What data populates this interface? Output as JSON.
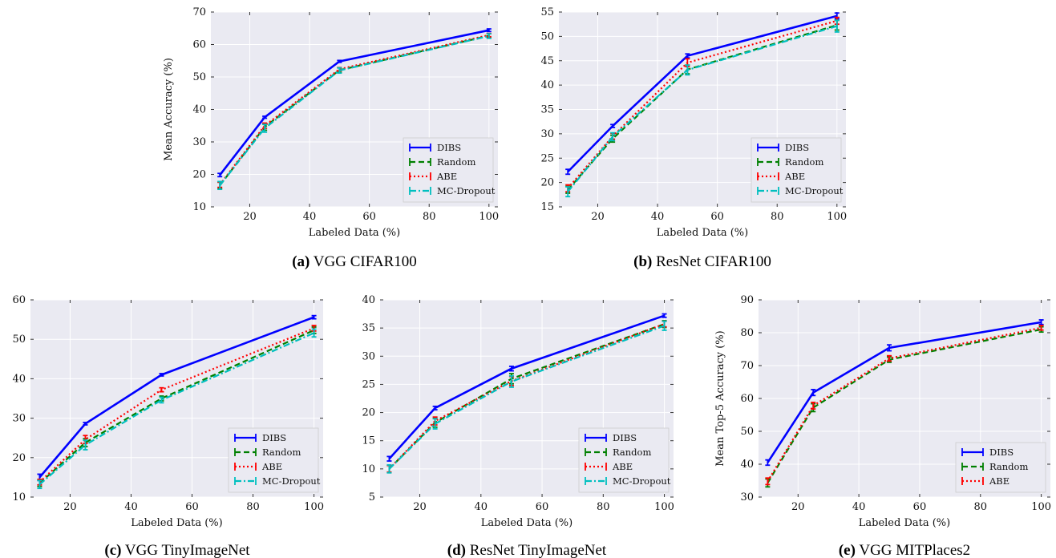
{
  "chart_data": [
    {
      "type": "line",
      "caption_tag": "(a)",
      "caption_text": " VGG CIFAR100",
      "xlabel": "Labeled Data (%)",
      "ylabel": "Mean Accuracy (%)",
      "xlim": [
        7,
        103
      ],
      "ylim": [
        10,
        70
      ],
      "xticks": [
        20,
        40,
        60,
        80,
        100
      ],
      "yticks": [
        10,
        20,
        30,
        40,
        50,
        60,
        70
      ],
      "x": [
        10,
        25,
        50,
        100
      ],
      "legend_position": "lower-right",
      "series": [
        {
          "name": "DIBS",
          "values": [
            19.8,
            37.6,
            54.8,
            64.4
          ],
          "errors": [
            0.5,
            0.3,
            0.3,
            0.4
          ],
          "color": "#0000ff",
          "dash": "solid"
        },
        {
          "name": "Random",
          "values": [
            16.6,
            34.6,
            52.1,
            62.7
          ],
          "errors": [
            1.0,
            1.0,
            0.7,
            0.6
          ],
          "color": "#008000",
          "dash": "dashed"
        },
        {
          "name": "ABE",
          "values": [
            16.8,
            35.0,
            52.4,
            62.9
          ],
          "errors": [
            0.8,
            0.8,
            0.5,
            0.5
          ],
          "color": "#ff0000",
          "dash": "dotted"
        },
        {
          "name": "MC-Dropout",
          "values": [
            16.6,
            34.2,
            52.0,
            62.6
          ],
          "errors": [
            1.2,
            1.2,
            0.8,
            0.7
          ],
          "color": "#00bfbf",
          "dash": "dashdot"
        }
      ]
    },
    {
      "type": "line",
      "caption_tag": "(b)",
      "caption_text": " ResNet CIFAR100",
      "xlabel": "Labeled Data (%)",
      "ylabel": "",
      "xlim": [
        7,
        103
      ],
      "ylim": [
        15,
        55
      ],
      "xticks": [
        20,
        40,
        60,
        80,
        100
      ],
      "yticks": [
        15,
        20,
        25,
        30,
        35,
        40,
        45,
        50,
        55
      ],
      "x": [
        10,
        25,
        50,
        100
      ],
      "legend_position": "lower-right",
      "series": [
        {
          "name": "DIBS",
          "values": [
            22.2,
            31.6,
            46.0,
            54.2
          ],
          "errors": [
            0.5,
            0.3,
            0.4,
            0.6
          ],
          "color": "#0000ff",
          "dash": "solid"
        },
        {
          "name": "Random",
          "values": [
            18.5,
            29.0,
            43.2,
            52.3
          ],
          "errors": [
            0.7,
            0.7,
            0.9,
            1.0
          ],
          "color": "#008000",
          "dash": "dashed"
        },
        {
          "name": "ABE",
          "values": [
            18.8,
            29.5,
            44.6,
            53.2
          ],
          "errors": [
            0.7,
            0.6,
            0.8,
            0.7
          ],
          "color": "#ff0000",
          "dash": "dotted"
        },
        {
          "name": "MC-Dropout",
          "values": [
            18.1,
            29.4,
            43.1,
            52.1
          ],
          "errors": [
            1.0,
            0.8,
            1.0,
            1.2
          ],
          "color": "#00bfbf",
          "dash": "dashdot"
        }
      ]
    },
    {
      "type": "line",
      "caption_tag": "(c)",
      "caption_text": " VGG TinyImageNet",
      "xlabel": "Labeled Data (%)",
      "ylabel": "",
      "xlim": [
        7,
        103
      ],
      "ylim": [
        10,
        60
      ],
      "xticks": [
        20,
        40,
        60,
        80,
        100
      ],
      "yticks": [
        10,
        20,
        30,
        40,
        50,
        60
      ],
      "x": [
        10,
        25,
        50,
        100
      ],
      "legend_position": "lower-right",
      "series": [
        {
          "name": "DIBS",
          "values": [
            15.0,
            28.6,
            41.0,
            55.6
          ],
          "errors": [
            0.8,
            0.3,
            0.3,
            0.4
          ],
          "color": "#0000ff",
          "dash": "solid"
        },
        {
          "name": "Random",
          "values": [
            13.5,
            23.8,
            35.0,
            52.3
          ],
          "errors": [
            0.8,
            1.0,
            0.6,
            0.8
          ],
          "color": "#008000",
          "dash": "dashed"
        },
        {
          "name": "ABE",
          "values": [
            13.8,
            24.6,
            37.2,
            52.8
          ],
          "errors": [
            0.7,
            1.0,
            0.5,
            0.7
          ],
          "color": "#ff0000",
          "dash": "dotted"
        },
        {
          "name": "MC-Dropout",
          "values": [
            13.2,
            23.2,
            34.6,
            51.6
          ],
          "errors": [
            1.0,
            1.2,
            0.7,
            1.0
          ],
          "color": "#00bfbf",
          "dash": "dashdot"
        }
      ]
    },
    {
      "type": "line",
      "caption_tag": "(d)",
      "caption_text": " ResNet TinyImageNet",
      "xlabel": "Labeled Data (%)",
      "ylabel": "",
      "xlim": [
        7,
        103
      ],
      "ylim": [
        5,
        40
      ],
      "xticks": [
        20,
        40,
        60,
        80,
        100
      ],
      "yticks": [
        5,
        10,
        15,
        20,
        25,
        30,
        35,
        40
      ],
      "x": [
        10,
        25,
        50,
        100
      ],
      "legend_position": "lower-right",
      "series": [
        {
          "name": "DIBS",
          "values": [
            11.8,
            20.8,
            27.8,
            37.2
          ],
          "errors": [
            0.4,
            0.3,
            0.4,
            0.3
          ],
          "color": "#0000ff",
          "dash": "solid"
        },
        {
          "name": "Random",
          "values": [
            10.0,
            18.2,
            26.0,
            35.7
          ],
          "errors": [
            0.6,
            0.8,
            0.9,
            0.6
          ],
          "color": "#008000",
          "dash": "dashed"
        },
        {
          "name": "ABE",
          "values": [
            10.0,
            18.5,
            25.6,
            35.7
          ],
          "errors": [
            0.6,
            0.7,
            0.8,
            0.5
          ],
          "color": "#ff0000",
          "dash": "dotted"
        },
        {
          "name": "MC-Dropout",
          "values": [
            10.0,
            18.0,
            25.5,
            35.4
          ],
          "errors": [
            0.7,
            0.9,
            1.0,
            0.8
          ],
          "color": "#00bfbf",
          "dash": "dashdot"
        }
      ]
    },
    {
      "type": "line",
      "caption_tag": "(e)",
      "caption_text": " VGG MITPlaces2",
      "xlabel": "Labeled Data (%)",
      "ylabel": "Mean Top-5 Accuracy (%)",
      "xlim": [
        7,
        103
      ],
      "ylim": [
        30,
        90
      ],
      "xticks": [
        20,
        40,
        60,
        80,
        100
      ],
      "yticks": [
        30,
        40,
        50,
        60,
        70,
        80,
        90
      ],
      "x": [
        10,
        25,
        50,
        100
      ],
      "legend_position": "lower-right",
      "series": [
        {
          "name": "DIBS",
          "values": [
            40.5,
            61.8,
            75.4,
            83.2
          ],
          "errors": [
            0.8,
            0.9,
            0.9,
            0.7
          ],
          "color": "#0000ff",
          "dash": "solid"
        },
        {
          "name": "Random",
          "values": [
            34.3,
            57.2,
            71.8,
            81.0
          ],
          "errors": [
            1.2,
            1.2,
            0.8,
            0.8
          ],
          "color": "#008000",
          "dash": "dashed"
        },
        {
          "name": "ABE",
          "values": [
            34.8,
            57.8,
            72.2,
            81.5
          ],
          "errors": [
            1.0,
            1.0,
            0.8,
            0.7
          ],
          "color": "#ff0000",
          "dash": "dotted"
        }
      ]
    }
  ]
}
